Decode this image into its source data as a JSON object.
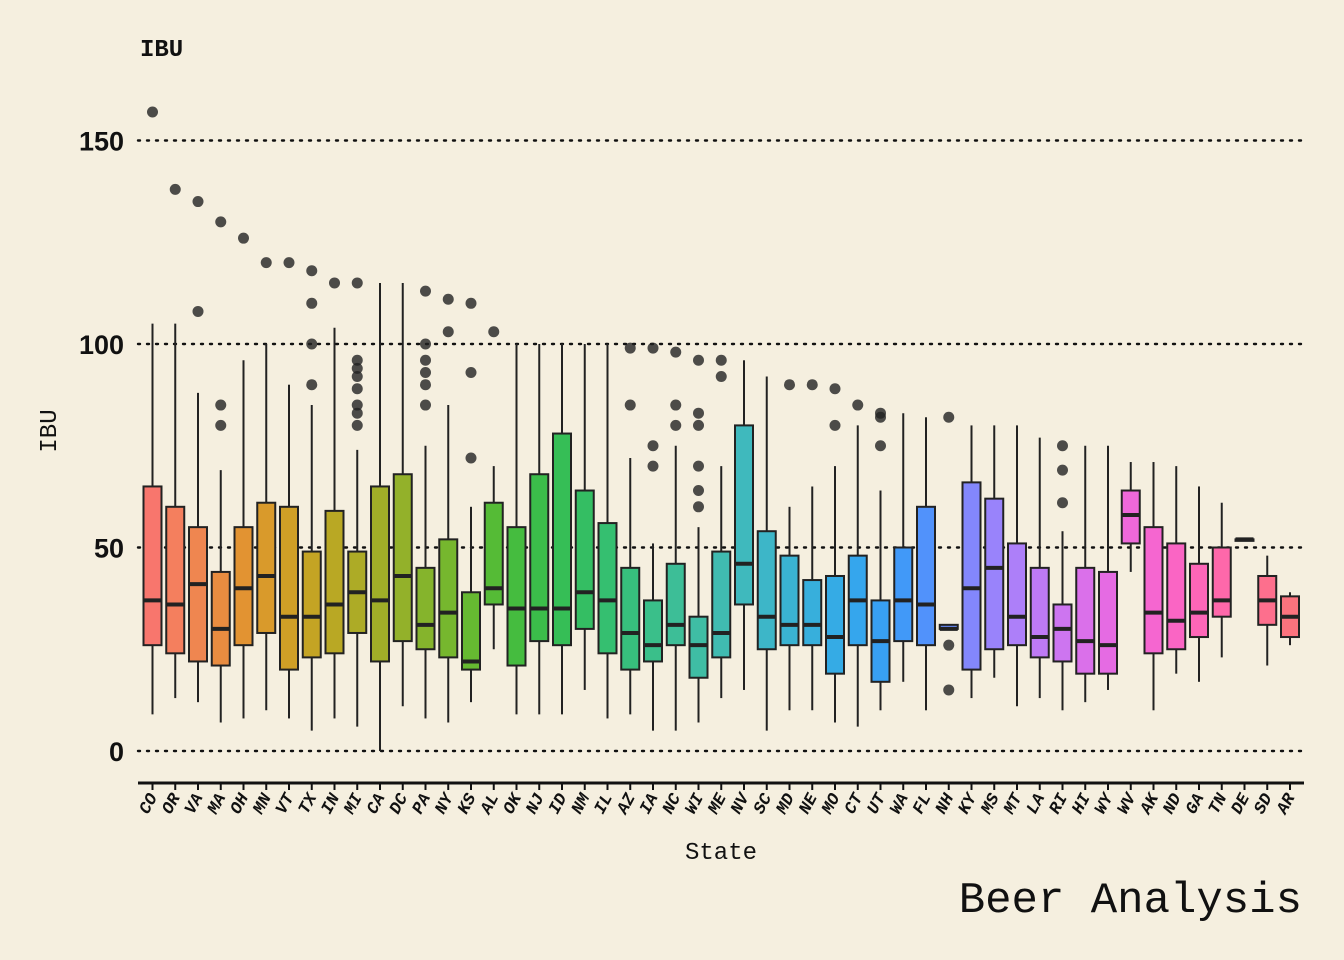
{
  "chart_data": {
    "type": "boxplot",
    "title": "IBU",
    "caption": "Beer Analysis",
    "xlabel": "State",
    "ylabel": "IBU",
    "ylim": [
      0,
      160
    ],
    "yticks": [
      0,
      50,
      100,
      150
    ],
    "grid": "horizontal dotted",
    "legend": "none",
    "background": "#f5efdf",
    "boxes": [
      {
        "state": "CO",
        "color": "#f8766d",
        "q1": 26,
        "med": 37,
        "q3": 65,
        "wlo": 9,
        "whi": 105,
        "outliers": [
          157
        ]
      },
      {
        "state": "OR",
        "color": "#f47f5e",
        "q1": 24,
        "med": 36,
        "q3": 60,
        "wlo": 13,
        "whi": 105,
        "outliers": [
          138
        ]
      },
      {
        "state": "VA",
        "color": "#ef8650",
        "q1": 22,
        "med": 41,
        "q3": 55,
        "wlo": 12,
        "whi": 88,
        "outliers": [
          108,
          135
        ]
      },
      {
        "state": "MA",
        "color": "#e98c40",
        "q1": 21,
        "med": 30,
        "q3": 44,
        "wlo": 7,
        "whi": 69,
        "outliers": [
          80,
          85,
          130
        ]
      },
      {
        "state": "OH",
        "color": "#e29332",
        "q1": 26,
        "med": 40,
        "q3": 55,
        "wlo": 8,
        "whi": 96,
        "outliers": [
          126
        ]
      },
      {
        "state": "MN",
        "color": "#d99a2b",
        "q1": 29,
        "med": 43,
        "q3": 61,
        "wlo": 10,
        "whi": 100,
        "outliers": [
          120
        ]
      },
      {
        "state": "VT",
        "color": "#cf9f26",
        "q1": 20,
        "med": 33,
        "q3": 60,
        "wlo": 8,
        "whi": 90,
        "outliers": [
          120
        ]
      },
      {
        "state": "TX",
        "color": "#c4a424",
        "q1": 23,
        "med": 33,
        "q3": 49,
        "wlo": 5,
        "whi": 85,
        "outliers": [
          90,
          100,
          110,
          118
        ]
      },
      {
        "state": "IN",
        "color": "#b9a824",
        "q1": 24,
        "med": 36,
        "q3": 59,
        "wlo": 8,
        "whi": 104,
        "outliers": [
          115
        ]
      },
      {
        "state": "MI",
        "color": "#adab26",
        "q1": 29,
        "med": 39,
        "q3": 49,
        "wlo": 6,
        "whi": 74,
        "outliers": [
          80,
          83,
          85,
          89,
          92,
          94,
          96,
          115
        ]
      },
      {
        "state": "CA",
        "color": "#a0ae28",
        "q1": 22,
        "med": 37,
        "q3": 65,
        "wlo": 0,
        "whi": 115,
        "outliers": []
      },
      {
        "state": "DC",
        "color": "#93b12a",
        "q1": 27,
        "med": 43,
        "q3": 68,
        "wlo": 11,
        "whi": 115,
        "outliers": []
      },
      {
        "state": "PA",
        "color": "#85b42c",
        "q1": 25,
        "med": 31,
        "q3": 45,
        "wlo": 8,
        "whi": 75,
        "outliers": [
          85,
          90,
          93,
          96,
          100,
          113
        ]
      },
      {
        "state": "NY",
        "color": "#76b72e",
        "q1": 23,
        "med": 34,
        "q3": 52,
        "wlo": 7,
        "whi": 85,
        "outliers": [
          103,
          111
        ]
      },
      {
        "state": "KS",
        "color": "#66b931",
        "q1": 20,
        "med": 22,
        "q3": 39,
        "wlo": 12,
        "whi": 60,
        "outliers": [
          72,
          93,
          110
        ]
      },
      {
        "state": "AL",
        "color": "#55bb36",
        "q1": 36,
        "med": 40,
        "q3": 61,
        "wlo": 25,
        "whi": 70,
        "outliers": [
          103
        ]
      },
      {
        "state": "OK",
        "color": "#45bc3f",
        "q1": 21,
        "med": 35,
        "q3": 55,
        "wlo": 9,
        "whi": 100,
        "outliers": []
      },
      {
        "state": "NJ",
        "color": "#3bbd4a",
        "q1": 27,
        "med": 35,
        "q3": 68,
        "wlo": 9,
        "whi": 100,
        "outliers": []
      },
      {
        "state": "ID",
        "color": "#36be56",
        "q1": 26,
        "med": 35,
        "q3": 78,
        "wlo": 9,
        "whi": 100,
        "outliers": []
      },
      {
        "state": "NM",
        "color": "#34be63",
        "q1": 30,
        "med": 39,
        "q3": 64,
        "wlo": 15,
        "whi": 100,
        "outliers": []
      },
      {
        "state": "IL",
        "color": "#35bf70",
        "q1": 24,
        "med": 37,
        "q3": 56,
        "wlo": 8,
        "whi": 100,
        "outliers": []
      },
      {
        "state": "AZ",
        "color": "#37bf7d",
        "q1": 20,
        "med": 29,
        "q3": 45,
        "wlo": 9,
        "whi": 72,
        "outliers": [
          85,
          99
        ]
      },
      {
        "state": "IA",
        "color": "#3abf8a",
        "q1": 22,
        "med": 26,
        "q3": 37,
        "wlo": 5,
        "whi": 51,
        "outliers": [
          70,
          75,
          99
        ]
      },
      {
        "state": "NC",
        "color": "#3dbe97",
        "q1": 26,
        "med": 31,
        "q3": 46,
        "wlo": 5,
        "whi": 75,
        "outliers": [
          80,
          85,
          98
        ]
      },
      {
        "state": "WI",
        "color": "#3fbda4",
        "q1": 18,
        "med": 26,
        "q3": 33,
        "wlo": 7,
        "whi": 55,
        "outliers": [
          60,
          64,
          70,
          80,
          83,
          96
        ]
      },
      {
        "state": "ME",
        "color": "#40bbb1",
        "q1": 23,
        "med": 29,
        "q3": 49,
        "wlo": 13,
        "whi": 70,
        "outliers": [
          92,
          96
        ]
      },
      {
        "state": "NV",
        "color": "#3fb9bd",
        "q1": 36,
        "med": 46,
        "q3": 80,
        "wlo": 15,
        "whi": 96,
        "outliers": []
      },
      {
        "state": "SC",
        "color": "#3db6c8",
        "q1": 25,
        "med": 33,
        "q3": 54,
        "wlo": 5,
        "whi": 92,
        "outliers": []
      },
      {
        "state": "MD",
        "color": "#3ab3d2",
        "q1": 26,
        "med": 31,
        "q3": 48,
        "wlo": 10,
        "whi": 60,
        "outliers": [
          90
        ]
      },
      {
        "state": "NE",
        "color": "#37afdc",
        "q1": 26,
        "med": 31,
        "q3": 42,
        "wlo": 10,
        "whi": 65,
        "outliers": [
          90
        ]
      },
      {
        "state": "MO",
        "color": "#35abe5",
        "q1": 19,
        "med": 28,
        "q3": 43,
        "wlo": 7,
        "whi": 70,
        "outliers": [
          80,
          89
        ]
      },
      {
        "state": "CT",
        "color": "#35a6ed",
        "q1": 26,
        "med": 37,
        "q3": 48,
        "wlo": 6,
        "whi": 80,
        "outliers": [
          85
        ]
      },
      {
        "state": "UT",
        "color": "#38a0f3",
        "q1": 17,
        "med": 27,
        "q3": 37,
        "wlo": 10,
        "whi": 64,
        "outliers": [
          75,
          82,
          83
        ]
      },
      {
        "state": "WA",
        "color": "#4199f8",
        "q1": 27,
        "med": 37,
        "q3": 50,
        "wlo": 17,
        "whi": 83,
        "outliers": []
      },
      {
        "state": "FL",
        "color": "#5192fb",
        "q1": 26,
        "med": 36,
        "q3": 60,
        "wlo": 10,
        "whi": 82,
        "outliers": []
      },
      {
        "state": "NH",
        "color": "#6a8bfc",
        "q1": 30,
        "med": 30,
        "q3": 31,
        "wlo": 30,
        "whi": 31,
        "outliers": [
          15,
          26,
          82
        ]
      },
      {
        "state": "KY",
        "color": "#8387fc",
        "q1": 20,
        "med": 40,
        "q3": 66,
        "wlo": 13,
        "whi": 80,
        "outliers": []
      },
      {
        "state": "MS",
        "color": "#9983fb",
        "q1": 25,
        "med": 45,
        "q3": 62,
        "wlo": 18,
        "whi": 80,
        "outliers": []
      },
      {
        "state": "MT",
        "color": "#ad7ff9",
        "q1": 26,
        "med": 33,
        "q3": 51,
        "wlo": 11,
        "whi": 80,
        "outliers": []
      },
      {
        "state": "LA",
        "color": "#be7af5",
        "q1": 23,
        "med": 28,
        "q3": 45,
        "wlo": 13,
        "whi": 77,
        "outliers": []
      },
      {
        "state": "RI",
        "color": "#cd75f0",
        "q1": 22,
        "med": 30,
        "q3": 36,
        "wlo": 10,
        "whi": 54,
        "outliers": [
          61,
          69,
          75
        ]
      },
      {
        "state": "HI",
        "color": "#da70ea",
        "q1": 19,
        "med": 27,
        "q3": 45,
        "wlo": 12,
        "whi": 75,
        "outliers": []
      },
      {
        "state": "WY",
        "color": "#e56be3",
        "q1": 19,
        "med": 26,
        "q3": 44,
        "wlo": 15,
        "whi": 75,
        "outliers": []
      },
      {
        "state": "WV",
        "color": "#ee68da",
        "q1": 51,
        "med": 58,
        "q3": 64,
        "wlo": 44,
        "whi": 71,
        "outliers": []
      },
      {
        "state": "AK",
        "color": "#f566d0",
        "q1": 24,
        "med": 34,
        "q3": 55,
        "wlo": 10,
        "whi": 71,
        "outliers": []
      },
      {
        "state": "ND",
        "color": "#fa65c4",
        "q1": 25,
        "med": 32,
        "q3": 51,
        "wlo": 19,
        "whi": 70,
        "outliers": []
      },
      {
        "state": "GA",
        "color": "#fd66b8",
        "q1": 28,
        "med": 34,
        "q3": 46,
        "wlo": 17,
        "whi": 65,
        "outliers": []
      },
      {
        "state": "TN",
        "color": "#fe68aa",
        "q1": 33,
        "med": 37,
        "q3": 50,
        "wlo": 23,
        "whi": 61,
        "outliers": []
      },
      {
        "state": "DE",
        "color": "#fe6b9c",
        "q1": 52,
        "med": 52,
        "q3": 52,
        "wlo": 52,
        "whi": 52,
        "outliers": []
      },
      {
        "state": "SD",
        "color": "#fd6f8d",
        "q1": 31,
        "med": 37,
        "q3": 43,
        "wlo": 21,
        "whi": 48,
        "outliers": []
      },
      {
        "state": "AR",
        "color": "#fb737e",
        "q1": 28,
        "med": 33,
        "q3": 38,
        "wlo": 26,
        "whi": 39,
        "outliers": []
      }
    ]
  }
}
